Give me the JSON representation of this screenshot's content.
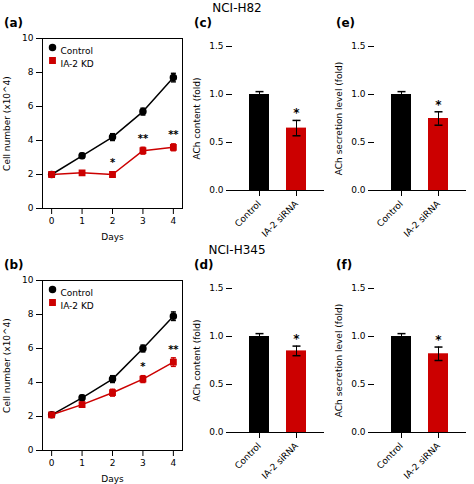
{
  "chart_data": [
    {
      "type": "line",
      "title": "NCI-H82",
      "subtitle": "(a)",
      "x": [
        0,
        1,
        2,
        3,
        4
      ],
      "series": [
        {
          "name": "Control",
          "color": "#000000",
          "marker": "circle",
          "values": [
            2.0,
            3.1,
            4.2,
            5.7,
            7.7
          ],
          "errors": [
            0.1,
            0.15,
            0.2,
            0.2,
            0.25
          ]
        },
        {
          "name": "IA-2 KD",
          "color": "#cc0000",
          "marker": "square",
          "values": [
            2.0,
            2.1,
            2.0,
            3.4,
            3.6
          ],
          "errors": [
            0.1,
            0.12,
            0.15,
            0.2,
            0.2
          ]
        }
      ],
      "annotations": [
        {
          "x": 2,
          "text": "*",
          "series": "IA-2 KD"
        },
        {
          "x": 3,
          "text": "**",
          "series": "IA-2 KD"
        },
        {
          "x": 4,
          "text": "**",
          "series": "IA-2 KD"
        }
      ],
      "xlabel": "Days",
      "ylabel": "Cell number (x10^4)",
      "xlim": [
        -0.3,
        4.3
      ],
      "xticks": [
        0,
        1,
        2,
        3,
        4
      ],
      "ylim": [
        0,
        10
      ],
      "yticks": [
        0,
        2,
        4,
        6,
        8,
        10
      ],
      "legend": "upper left"
    },
    {
      "type": "bar",
      "subtitle": "(c)",
      "categories": [
        "Control",
        "IA-2 siRNA"
      ],
      "values": [
        1.0,
        0.65
      ],
      "errors": [
        0.03,
        0.08
      ],
      "colors": [
        "#000000",
        "#cc0000"
      ],
      "annotations": [
        {
          "category": "IA-2 siRNA",
          "text": "*"
        }
      ],
      "ylabel": "ACh content (fold)",
      "ylim": [
        0,
        1.5
      ],
      "yticks": [
        {
          "value": 0.0,
          "label": "0.0"
        },
        0.5,
        {
          "value": 1.0,
          "label": "1.0"
        },
        1.5
      ]
    },
    {
      "type": "bar",
      "subtitle": "(e)",
      "categories": [
        "Control",
        "IA-2 siRNA"
      ],
      "values": [
        1.0,
        0.75
      ],
      "errors": [
        0.03,
        0.07
      ],
      "colors": [
        "#000000",
        "#cc0000"
      ],
      "annotations": [
        {
          "category": "IA-2 siRNA",
          "text": "*"
        }
      ],
      "ylabel": "ACh secretion level (fold)",
      "ylim": [
        0,
        1.5
      ],
      "yticks": [
        {
          "value": 0.0,
          "label": "0.0"
        },
        0.5,
        {
          "value": 1.0,
          "label": "1.0"
        },
        1.5
      ]
    },
    {
      "type": "line",
      "title": "NCI-H345",
      "subtitle": "(b)",
      "x": [
        0,
        1,
        2,
        3,
        4
      ],
      "series": [
        {
          "name": "Control",
          "color": "#000000",
          "marker": "circle",
          "values": [
            2.1,
            3.1,
            4.2,
            6.0,
            7.9
          ],
          "errors": [
            0.1,
            0.15,
            0.2,
            0.2,
            0.25
          ]
        },
        {
          "name": "IA-2 KD",
          "color": "#cc0000",
          "marker": "square",
          "values": [
            2.1,
            2.7,
            3.4,
            4.2,
            5.2
          ],
          "errors": [
            0.1,
            0.15,
            0.2,
            0.2,
            0.25
          ]
        }
      ],
      "annotations": [
        {
          "x": 3,
          "text": "*",
          "series": "IA-2 KD"
        },
        {
          "x": 4,
          "text": "**",
          "series": "IA-2 KD"
        }
      ],
      "xlabel": "Days",
      "ylabel": "Cell number (x10^4)",
      "xlim": [
        -0.3,
        4.3
      ],
      "xticks": [
        0,
        1,
        2,
        3,
        4
      ],
      "ylim": [
        0,
        10
      ],
      "yticks": [
        0,
        2,
        4,
        6,
        8,
        10
      ],
      "legend": "upper left"
    },
    {
      "type": "bar",
      "subtitle": "(d)",
      "categories": [
        "Control",
        "IA-2 siRNA"
      ],
      "values": [
        1.0,
        0.85
      ],
      "errors": [
        0.03,
        0.05
      ],
      "colors": [
        "#000000",
        "#cc0000"
      ],
      "annotations": [
        {
          "category": "IA-2 siRNA",
          "text": "*"
        }
      ],
      "ylabel": "ACh content (fold)",
      "ylim": [
        0,
        1.5
      ],
      "yticks": [
        {
          "value": 0.0,
          "label": "0.0"
        },
        0.5,
        {
          "value": 1.0,
          "label": "1.0"
        },
        1.5
      ]
    },
    {
      "type": "bar",
      "subtitle": "(f)",
      "categories": [
        "Control",
        "IA-2 siRNA"
      ],
      "values": [
        1.0,
        0.82
      ],
      "errors": [
        0.03,
        0.07
      ],
      "colors": [
        "#000000",
        "#cc0000"
      ],
      "annotations": [
        {
          "category": "IA-2 siRNA",
          "text": "*"
        }
      ],
      "ylabel": "ACh secretion level (fold)",
      "ylim": [
        0,
        1.5
      ],
      "yticks": [
        {
          "value": 0.0,
          "label": "0.0"
        },
        0.5,
        {
          "value": 1.0,
          "label": "1.0"
        },
        1.5
      ]
    }
  ]
}
